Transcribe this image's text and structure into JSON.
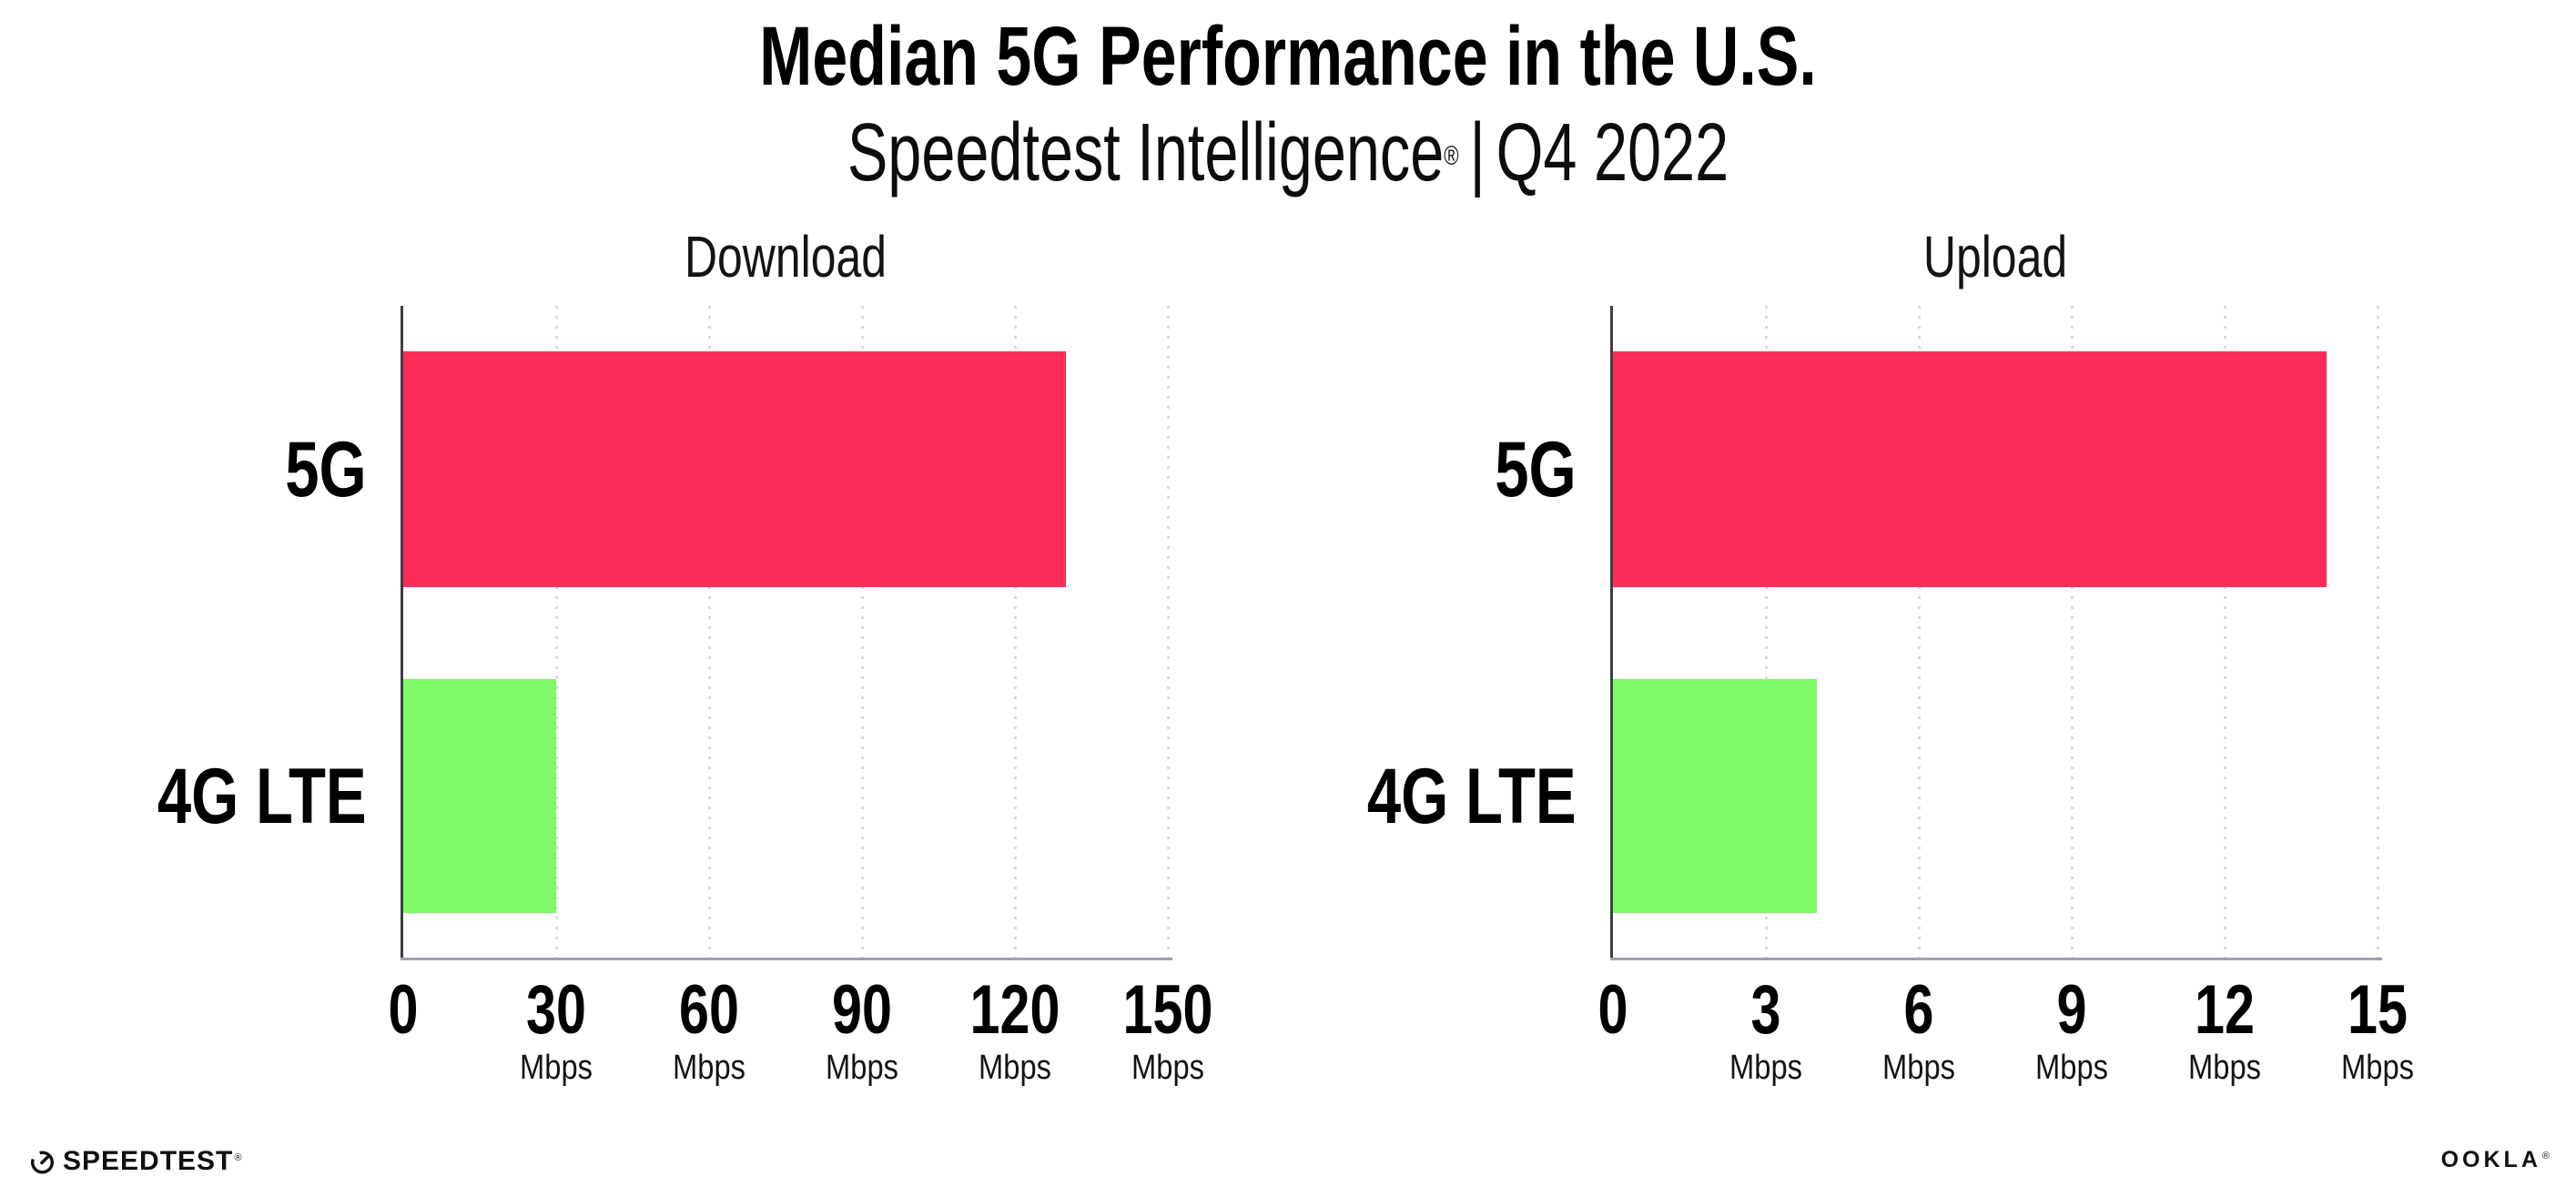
{
  "header": {
    "title": "Median 5G Performance in the U.S.",
    "subtitle_brand": "Speedtest Intelligence",
    "reg_mark": "®",
    "divider": "|",
    "subtitle_period": "Q4 2022"
  },
  "chart_data": [
    {
      "type": "bar",
      "orientation": "horizontal",
      "title": "Download",
      "categories": [
        "5G",
        "4G LTE"
      ],
      "values": [
        130,
        30
      ],
      "unit": "Mbps",
      "xlim": [
        0,
        150
      ],
      "xticks": [
        0,
        30,
        60,
        90,
        120,
        150
      ],
      "bar_colors": [
        "#FC2D58",
        "#80F966"
      ],
      "grid": "dotted-vertical",
      "legend": "none"
    },
    {
      "type": "bar",
      "orientation": "horizontal",
      "title": "Upload",
      "categories": [
        "5G",
        "4G LTE"
      ],
      "values": [
        14,
        4
      ],
      "unit": "Mbps",
      "xlim": [
        0,
        15
      ],
      "xticks": [
        0,
        3,
        6,
        9,
        12,
        15
      ],
      "bar_colors": [
        "#FC2D58",
        "#80F966"
      ],
      "grid": "dotted-vertical",
      "legend": "none"
    }
  ],
  "footer": {
    "speedtest_label": "SPEEDTEST",
    "speedtest_mark": "®",
    "ookla_label": "OOKLA",
    "ookla_mark": "®"
  },
  "colors": {
    "bar_5g": "#FC2D58",
    "bar_4g_lte": "#80F966",
    "axis_line": "#3E3E46",
    "baseline": "#9FA0A8",
    "gridline_dots": "#D9D9E3",
    "text": "#111111",
    "background": "#FFFFFF"
  }
}
